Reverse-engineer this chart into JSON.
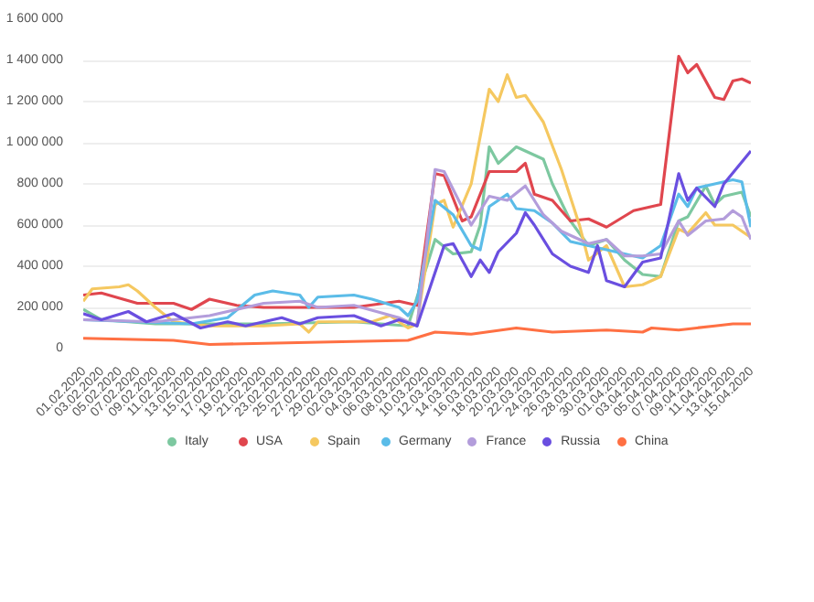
{
  "chart_data": {
    "type": "line",
    "xlim": [
      "2020-02-01",
      "2020-04-15"
    ],
    "ylim": [
      0,
      1600000
    ],
    "yticks": [
      0,
      {
        "value": 200000,
        "label": "200 000"
      },
      {
        "value": 400000,
        "label": "400 000"
      },
      {
        "value": 600000,
        "label": "600 000"
      },
      {
        "value": 800000,
        "label": "800 000"
      },
      {
        "value": 1000000,
        "label": "1 000 000"
      },
      {
        "value": 1200000,
        "label": "1 200 000"
      },
      {
        "value": 1400000,
        "label": "1 400 000"
      },
      {
        "value": 1600000,
        "label": "1 600 000"
      }
    ],
    "xticks": [
      {
        "value": "2020-02-01",
        "label": "01.02.2020"
      },
      {
        "value": "2020-02-03",
        "label": "03.02.2020"
      },
      {
        "value": "2020-02-05",
        "label": "05.02.2020"
      },
      {
        "value": "2020-02-07",
        "label": "07.02.2020"
      },
      {
        "value": "2020-02-09",
        "label": "09.02.2020"
      },
      {
        "value": "2020-02-11",
        "label": "11.02.2020"
      },
      {
        "value": "2020-02-13",
        "label": "13.02.2020"
      },
      {
        "value": "2020-02-15",
        "label": "15.02.2020"
      },
      {
        "value": "2020-02-17",
        "label": "17.02.2020"
      },
      {
        "value": "2020-02-19",
        "label": "19.02.2020"
      },
      {
        "value": "2020-02-21",
        "label": "21.02.2020"
      },
      {
        "value": "2020-02-23",
        "label": "23.02.2020"
      },
      {
        "value": "2020-02-25",
        "label": "25.02.2020"
      },
      {
        "value": "2020-02-27",
        "label": "27.02.2020"
      },
      {
        "value": "2020-02-29",
        "label": "29.02.2020"
      },
      {
        "value": "2020-03-02",
        "label": "02.03.2020"
      },
      {
        "value": "2020-03-04",
        "label": "04.03.2020"
      },
      {
        "value": "2020-03-06",
        "label": "06.03.2020"
      },
      {
        "value": "2020-03-08",
        "label": "08.03.2020"
      },
      {
        "value": "2020-03-10",
        "label": "10.03.2020"
      },
      {
        "value": "2020-03-12",
        "label": "12.03.2020"
      },
      {
        "value": "2020-03-14",
        "label": "14.03.2020"
      },
      {
        "value": "2020-03-16",
        "label": "16.03.2020"
      },
      {
        "value": "2020-03-18",
        "label": "18.03.2020"
      },
      {
        "value": "2020-03-20",
        "label": "20.03.2020"
      },
      {
        "value": "2020-03-22",
        "label": "22.03.2020"
      },
      {
        "value": "2020-03-24",
        "label": "24.03.2020"
      },
      {
        "value": "2020-03-26",
        "label": "26.03.2020"
      },
      {
        "value": "2020-03-28",
        "label": "28.03.2020"
      },
      {
        "value": "2020-03-30",
        "label": "30.03.2020"
      },
      {
        "value": "2020-04-01",
        "label": "01.04.2020"
      },
      {
        "value": "2020-04-03",
        "label": "03.04.2020"
      },
      {
        "value": "2020-04-05",
        "label": "05.04.2020"
      },
      {
        "value": "2020-04-07",
        "label": "07.04.2020"
      },
      {
        "value": "2020-04-09",
        "label": "09.04.2020"
      },
      {
        "value": "2020-04-11",
        "label": "11.04.2020"
      },
      {
        "value": "2020-04-13",
        "label": "13.04.2020"
      },
      {
        "value": "2020-04-15",
        "label": "15.04.2020"
      }
    ],
    "grid": "y",
    "legend": "bottom",
    "marker": "none",
    "line_style": "solid",
    "series": [
      {
        "name": "Italy",
        "color": "#7dc8a0",
        "x": [
          "2020-02-01",
          "2020-02-03",
          "2020-02-09",
          "2020-02-21",
          "2020-03-02",
          "2020-03-08",
          "2020-03-11",
          "2020-03-13",
          "2020-03-15",
          "2020-03-16",
          "2020-03-17",
          "2020-03-18",
          "2020-03-20",
          "2020-03-21",
          "2020-03-23",
          "2020-03-24",
          "2020-03-26",
          "2020-03-28",
          "2020-03-30",
          "2020-04-01",
          "2020-04-03",
          "2020-04-05",
          "2020-04-07",
          "2020-04-08",
          "2020-04-10",
          "2020-04-11",
          "2020-04-12",
          "2020-04-14",
          "2020-04-15"
        ],
        "values": [
          190000,
          140000,
          120000,
          120000,
          130000,
          110000,
          530000,
          460000,
          470000,
          600000,
          980000,
          900000,
          980000,
          960000,
          920000,
          800000,
          620000,
          500000,
          530000,
          430000,
          360000,
          350000,
          620000,
          640000,
          790000,
          700000,
          740000,
          760000,
          640000
        ]
      },
      {
        "name": "USA",
        "color": "#e0464e",
        "x": [
          "2020-02-01",
          "2020-02-03",
          "2020-02-07",
          "2020-02-11",
          "2020-02-13",
          "2020-02-15",
          "2020-02-18",
          "2020-02-21",
          "2020-03-02",
          "2020-03-07",
          "2020-03-09",
          "2020-03-11",
          "2020-03-12",
          "2020-03-14",
          "2020-03-15",
          "2020-03-17",
          "2020-03-20",
          "2020-03-21",
          "2020-03-22",
          "2020-03-24",
          "2020-03-26",
          "2020-03-28",
          "2020-03-30",
          "2020-04-02",
          "2020-04-05",
          "2020-04-07",
          "2020-04-08",
          "2020-04-09",
          "2020-04-11",
          "2020-04-12",
          "2020-04-13",
          "2020-04-14",
          "2020-04-15"
        ],
        "values": [
          260000,
          270000,
          220000,
          220000,
          190000,
          240000,
          210000,
          200000,
          200000,
          230000,
          210000,
          850000,
          840000,
          620000,
          640000,
          860000,
          860000,
          900000,
          750000,
          720000,
          620000,
          630000,
          590000,
          670000,
          700000,
          1420000,
          1340000,
          1380000,
          1220000,
          1210000,
          1300000,
          1310000,
          1290000
        ]
      },
      {
        "name": "Spain",
        "color": "#f5c860",
        "x": [
          "2020-02-01",
          "2020-02-02",
          "2020-02-05",
          "2020-02-06",
          "2020-02-07",
          "2020-02-09",
          "2020-02-11",
          "2020-02-15",
          "2020-02-21",
          "2020-02-25",
          "2020-02-26",
          "2020-02-27",
          "2020-03-04",
          "2020-03-06",
          "2020-03-08",
          "2020-03-09",
          "2020-03-11",
          "2020-03-12",
          "2020-03-13",
          "2020-03-15",
          "2020-03-17",
          "2020-03-18",
          "2020-03-19",
          "2020-03-20",
          "2020-03-21",
          "2020-03-23",
          "2020-03-25",
          "2020-03-27",
          "2020-03-28",
          "2020-03-30",
          "2020-04-01",
          "2020-04-03",
          "2020-04-05",
          "2020-04-07",
          "2020-04-08",
          "2020-04-10",
          "2020-04-11",
          "2020-04-13",
          "2020-04-15"
        ],
        "values": [
          230000,
          290000,
          300000,
          310000,
          280000,
          200000,
          130000,
          110000,
          110000,
          120000,
          80000,
          130000,
          130000,
          160000,
          100000,
          120000,
          700000,
          720000,
          590000,
          800000,
          1260000,
          1200000,
          1330000,
          1220000,
          1230000,
          1100000,
          870000,
          600000,
          430000,
          500000,
          300000,
          310000,
          350000,
          580000,
          560000,
          660000,
          600000,
          600000,
          540000
        ]
      },
      {
        "name": "Germany",
        "color": "#5bbce8",
        "x": [
          "2020-02-01",
          "2020-02-07",
          "2020-02-13",
          "2020-02-17",
          "2020-02-20",
          "2020-02-22",
          "2020-02-25",
          "2020-02-26",
          "2020-02-27",
          "2020-03-02",
          "2020-03-04",
          "2020-03-07",
          "2020-03-08",
          "2020-03-09",
          "2020-03-11",
          "2020-03-13",
          "2020-03-15",
          "2020-03-16",
          "2020-03-17",
          "2020-03-19",
          "2020-03-20",
          "2020-03-22",
          "2020-03-24",
          "2020-03-26",
          "2020-03-28",
          "2020-03-30",
          "2020-04-03",
          "2020-04-05",
          "2020-04-07",
          "2020-04-08",
          "2020-04-09",
          "2020-04-11",
          "2020-04-13",
          "2020-04-14",
          "2020-04-15"
        ],
        "values": [
          140000,
          130000,
          120000,
          150000,
          260000,
          280000,
          260000,
          200000,
          250000,
          260000,
          240000,
          200000,
          160000,
          230000,
          720000,
          650000,
          500000,
          480000,
          690000,
          750000,
          680000,
          670000,
          610000,
          520000,
          500000,
          480000,
          440000,
          500000,
          750000,
          690000,
          780000,
          800000,
          820000,
          810000,
          590000
        ]
      },
      {
        "name": "France",
        "color": "#b39ddb",
        "x": [
          "2020-02-01",
          "2020-02-09",
          "2020-02-15",
          "2020-02-21",
          "2020-02-25",
          "2020-02-27",
          "2020-03-02",
          "2020-03-07",
          "2020-03-09",
          "2020-03-11",
          "2020-03-12",
          "2020-03-15",
          "2020-03-17",
          "2020-03-19",
          "2020-03-21",
          "2020-03-23",
          "2020-03-25",
          "2020-03-28",
          "2020-03-30",
          "2020-04-01",
          "2020-04-03",
          "2020-04-05",
          "2020-04-07",
          "2020-04-08",
          "2020-04-10",
          "2020-04-12",
          "2020-04-13",
          "2020-04-14",
          "2020-04-15"
        ],
        "values": [
          140000,
          130000,
          160000,
          220000,
          230000,
          200000,
          210000,
          150000,
          110000,
          870000,
          860000,
          600000,
          740000,
          720000,
          790000,
          650000,
          570000,
          510000,
          530000,
          450000,
          450000,
          460000,
          620000,
          550000,
          620000,
          630000,
          670000,
          640000,
          530000
        ]
      },
      {
        "name": "Russia",
        "color": "#6a4fe0",
        "x": [
          "2020-02-01",
          "2020-02-03",
          "2020-02-06",
          "2020-02-08",
          "2020-02-11",
          "2020-02-14",
          "2020-02-17",
          "2020-02-19",
          "2020-02-23",
          "2020-02-25",
          "2020-02-27",
          "2020-03-02",
          "2020-03-05",
          "2020-03-07",
          "2020-03-09",
          "2020-03-12",
          "2020-03-13",
          "2020-03-15",
          "2020-03-16",
          "2020-03-17",
          "2020-03-18",
          "2020-03-20",
          "2020-03-21",
          "2020-03-22",
          "2020-03-24",
          "2020-03-26",
          "2020-03-28",
          "2020-03-29",
          "2020-03-30",
          "2020-04-01",
          "2020-04-03",
          "2020-04-05",
          "2020-04-07",
          "2020-04-08",
          "2020-04-09",
          "2020-04-11",
          "2020-04-12",
          "2020-04-15"
        ],
        "values": [
          170000,
          140000,
          180000,
          130000,
          170000,
          100000,
          130000,
          110000,
          150000,
          120000,
          150000,
          160000,
          110000,
          140000,
          110000,
          500000,
          510000,
          350000,
          430000,
          370000,
          470000,
          560000,
          660000,
          600000,
          460000,
          400000,
          370000,
          500000,
          330000,
          300000,
          420000,
          440000,
          850000,
          720000,
          780000,
          690000,
          800000,
          960000
        ]
      },
      {
        "name": "China",
        "color": "#ff7043",
        "x": [
          "2020-02-01",
          "2020-02-11",
          "2020-02-15",
          "2020-02-26",
          "2020-03-08",
          "2020-03-11",
          "2020-03-15",
          "2020-03-20",
          "2020-03-24",
          "2020-03-30",
          "2020-04-03",
          "2020-04-04",
          "2020-04-07",
          "2020-04-11",
          "2020-04-13",
          "2020-04-15"
        ],
        "values": [
          50000,
          40000,
          20000,
          30000,
          40000,
          80000,
          70000,
          100000,
          80000,
          90000,
          80000,
          100000,
          90000,
          110000,
          120000,
          120000
        ]
      }
    ]
  }
}
